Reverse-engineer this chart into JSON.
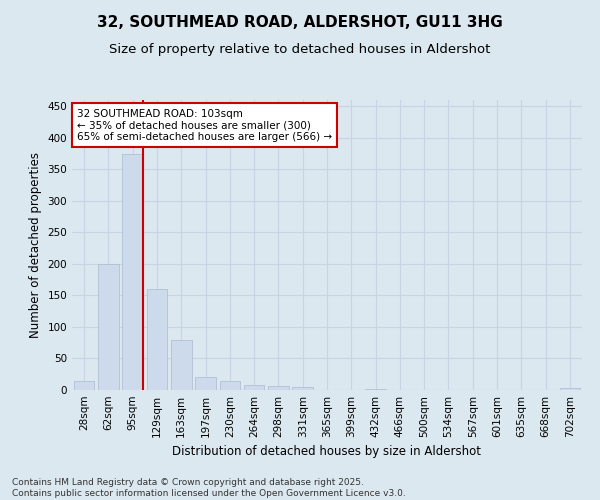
{
  "title_line1": "32, SOUTHMEAD ROAD, ALDERSHOT, GU11 3HG",
  "title_line2": "Size of property relative to detached houses in Aldershot",
  "xlabel": "Distribution of detached houses by size in Aldershot",
  "ylabel": "Number of detached properties",
  "categories": [
    "28sqm",
    "62sqm",
    "95sqm",
    "129sqm",
    "163sqm",
    "197sqm",
    "230sqm",
    "264sqm",
    "298sqm",
    "331sqm",
    "365sqm",
    "399sqm",
    "432sqm",
    "466sqm",
    "500sqm",
    "534sqm",
    "567sqm",
    "601sqm",
    "635sqm",
    "668sqm",
    "702sqm"
  ],
  "values": [
    15,
    200,
    375,
    160,
    80,
    20,
    14,
    8,
    6,
    4,
    0,
    0,
    2,
    0,
    0,
    0,
    0,
    0,
    0,
    0,
    3
  ],
  "bar_color": "#ccdaec",
  "bar_edge_color": "#aabbd0",
  "red_line_index": 2,
  "annotation_text_line1": "32 SOUTHMEAD ROAD: 103sqm",
  "annotation_text_line2": "← 35% of detached houses are smaller (300)",
  "annotation_text_line3": "65% of semi-detached houses are larger (566) →",
  "annotation_box_color": "#ffffff",
  "annotation_border_color": "#cc0000",
  "red_line_color": "#cc0000",
  "grid_color": "#c8d4e4",
  "bg_color": "#dce8f0",
  "plot_bg_color": "#dce8f0",
  "ylim": [
    0,
    460
  ],
  "yticks": [
    0,
    50,
    100,
    150,
    200,
    250,
    300,
    350,
    400,
    450
  ],
  "footer_line1": "Contains HM Land Registry data © Crown copyright and database right 2025.",
  "footer_line2": "Contains public sector information licensed under the Open Government Licence v3.0.",
  "title_fontsize": 11,
  "subtitle_fontsize": 9.5,
  "axis_label_fontsize": 8.5,
  "tick_fontsize": 7.5,
  "annotation_fontsize": 7.5,
  "footer_fontsize": 6.5
}
